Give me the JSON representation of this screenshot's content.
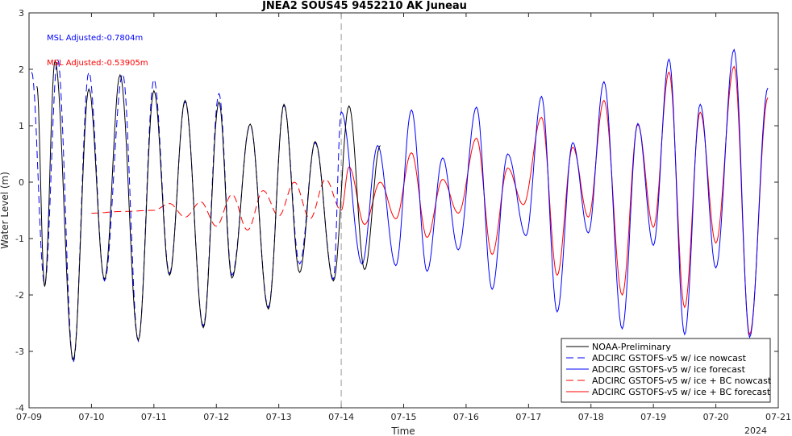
{
  "chart_data": {
    "type": "line",
    "title": "JNEA2 SOUS45 9452210 AK Juneau",
    "xlabel": "Time",
    "ylabel": "Water Level (m)",
    "year_label": "2024",
    "xlim": [
      "2024-07-09",
      "2024-07-21"
    ],
    "ylim": [
      -4,
      3
    ],
    "yticks": [
      -4,
      -3,
      -2,
      -1,
      0,
      1,
      2,
      3
    ],
    "xticks": [
      "07-09",
      "07-10",
      "07-11",
      "07-12",
      "07-13",
      "07-14",
      "07-15",
      "07-16",
      "07-17",
      "07-18",
      "07-19",
      "07-20",
      "07-21"
    ],
    "nowcast_forecast_divider": "07-14",
    "annotations": [
      {
        "text": "MSL Adjusted:-0.7804m",
        "color": "#0000ff"
      },
      {
        "text": "MSL Adjusted:-0.53905m",
        "color": "#ff0000"
      }
    ],
    "legend_position": "bottom-right",
    "series": [
      {
        "name": "NOAA-Preliminary",
        "color": "#000000",
        "style": "solid",
        "x_range": [
          "07-09",
          "07-14"
        ]
      },
      {
        "name": "ADCIRC GSTOFS-v5 w/ ice nowcast",
        "color": "#0000ff",
        "style": "dashed",
        "x_range": [
          "07-09",
          "07-14"
        ]
      },
      {
        "name": "ADCIRC GSTOFS-v5 w/ ice forecast",
        "color": "#0000ff",
        "style": "solid",
        "x_range": [
          "07-14",
          "07-21"
        ]
      },
      {
        "name": "ADCIRC GSTOFS-v5 w/ ice + BC nowcast",
        "color": "#ff0000",
        "style": "dashed",
        "x_range": [
          "07-10",
          "07-14"
        ]
      },
      {
        "name": "ADCIRC GSTOFS-v5 w/ ice + BC forecast",
        "color": "#ff0000",
        "style": "solid",
        "x_range": [
          "07-14",
          "07-21"
        ]
      }
    ],
    "extrema": {
      "NOAA-Preliminary": [
        [
          "07-09 03:00",
          1.7
        ],
        [
          "07-09 06:00",
          -1.85
        ],
        [
          "07-09 10:00",
          2.15
        ],
        [
          "07-09 17:00",
          -3.15
        ],
        [
          "07-09 23:00",
          1.65
        ],
        [
          "07-10 05:00",
          -1.72
        ],
        [
          "07-10 11:00",
          1.9
        ],
        [
          "07-10 18:00",
          -2.8
        ],
        [
          "07-11 00:00",
          1.62
        ],
        [
          "07-11 06:00",
          -1.65
        ],
        [
          "07-11 12:00",
          1.45
        ],
        [
          "07-11 19:00",
          -2.58
        ],
        [
          "07-12 01:00",
          1.42
        ],
        [
          "07-12 06:00",
          -1.7
        ],
        [
          "07-12 13:00",
          1.03
        ],
        [
          "07-12 20:00",
          -2.25
        ],
        [
          "07-13 02:00",
          1.38
        ],
        [
          "07-13 08:00",
          -1.6
        ],
        [
          "07-13 14:00",
          0.72
        ],
        [
          "07-13 21:00",
          -1.75
        ],
        [
          "07-14 03:00",
          1.35
        ],
        [
          "07-14 09:00",
          -1.55
        ],
        [
          "07-14 15:00",
          0.65
        ]
      ],
      "ADCIRC GSTOFS-v5 w/ ice nowcast": [
        [
          "07-09 01:00",
          1.95
        ],
        [
          "07-09 06:00",
          -1.82
        ],
        [
          "07-09 11:00",
          2.18
        ],
        [
          "07-09 17:00",
          -3.2
        ],
        [
          "07-09 23:00",
          1.95
        ],
        [
          "07-10 05:00",
          -1.75
        ],
        [
          "07-10 12:00",
          1.92
        ],
        [
          "07-10 18:00",
          -2.82
        ],
        [
          "07-11 00:00",
          1.82
        ],
        [
          "07-11 06:00",
          -1.62
        ],
        [
          "07-11 12:00",
          1.43
        ],
        [
          "07-11 19:00",
          -2.55
        ],
        [
          "07-12 01:00",
          1.57
        ],
        [
          "07-12 06:00",
          -1.65
        ],
        [
          "07-12 13:00",
          1.02
        ],
        [
          "07-12 20:00",
          -2.22
        ],
        [
          "07-13 02:00",
          1.36
        ],
        [
          "07-13 08:00",
          -1.45
        ],
        [
          "07-13 14:00",
          0.7
        ],
        [
          "07-13 21:00",
          -1.72
        ],
        [
          "07-14 00:00",
          1.25
        ]
      ],
      "ADCIRC GSTOFS-v5 w/ ice forecast": [
        [
          "07-14 00:00",
          1.25
        ],
        [
          "07-14 08:00",
          -1.45
        ],
        [
          "07-14 14:00",
          0.65
        ],
        [
          "07-14 21:00",
          -1.48
        ],
        [
          "07-15 03:00",
          1.28
        ],
        [
          "07-15 09:00",
          -1.58
        ],
        [
          "07-15 15:00",
          0.43
        ],
        [
          "07-15 21:00",
          -1.2
        ],
        [
          "07-16 04:00",
          1.33
        ],
        [
          "07-16 10:00",
          -1.9
        ],
        [
          "07-16 16:00",
          0.5
        ],
        [
          "07-16 23:00",
          -0.95
        ],
        [
          "07-17 05:00",
          1.52
        ],
        [
          "07-17 11:00",
          -2.3
        ],
        [
          "07-17 17:00",
          0.7
        ],
        [
          "07-17 23:00",
          -0.9
        ],
        [
          "07-18 05:00",
          1.78
        ],
        [
          "07-18 12:00",
          -2.6
        ],
        [
          "07-18 18:00",
          1.04
        ],
        [
          "07-19 00:00",
          -1.12
        ],
        [
          "07-19 06:00",
          2.18
        ],
        [
          "07-19 12:00",
          -2.7
        ],
        [
          "07-19 18:00",
          1.38
        ],
        [
          "07-20 00:00",
          -1.52
        ],
        [
          "07-20 07:00",
          2.35
        ],
        [
          "07-20 13:00",
          -2.75
        ],
        [
          "07-20 20:00",
          1.67
        ]
      ],
      "ADCIRC GSTOFS-v5 w/ ice + BC nowcast": [
        [
          "07-10 00:00",
          -0.55
        ],
        [
          "07-10 12:00",
          -0.52
        ],
        [
          "07-11 00:00",
          -0.5
        ],
        [
          "07-11 06:00",
          -0.38
        ],
        [
          "07-11 12:00",
          -0.62
        ],
        [
          "07-11 18:00",
          -0.35
        ],
        [
          "07-12 00:00",
          -0.78
        ],
        [
          "07-12 06:00",
          -0.22
        ],
        [
          "07-12 12:00",
          -0.85
        ],
        [
          "07-12 18:00",
          -0.15
        ],
        [
          "07-13 00:00",
          -0.6
        ],
        [
          "07-13 06:00",
          0.0
        ],
        [
          "07-13 12:00",
          -0.65
        ],
        [
          "07-13 18:00",
          0.05
        ],
        [
          "07-14 00:00",
          -0.5
        ]
      ],
      "ADCIRC GSTOFS-v5 w/ ice + BC forecast": [
        [
          "07-14 00:00",
          -0.5
        ],
        [
          "07-14 03:00",
          0.27
        ],
        [
          "07-14 09:00",
          -0.75
        ],
        [
          "07-14 15:00",
          0.0
        ],
        [
          "07-14 21:00",
          -0.65
        ],
        [
          "07-15 03:00",
          0.52
        ],
        [
          "07-15 09:00",
          -0.98
        ],
        [
          "07-15 15:00",
          0.05
        ],
        [
          "07-15 21:00",
          -0.55
        ],
        [
          "07-16 04:00",
          0.78
        ],
        [
          "07-16 10:00",
          -1.28
        ],
        [
          "07-16 16:00",
          0.25
        ],
        [
          "07-16 22:00",
          -0.4
        ],
        [
          "07-17 05:00",
          1.15
        ],
        [
          "07-17 11:00",
          -1.65
        ],
        [
          "07-17 17:00",
          0.62
        ],
        [
          "07-17 23:00",
          -0.62
        ],
        [
          "07-18 05:00",
          1.45
        ],
        [
          "07-18 12:00",
          -2.0
        ],
        [
          "07-18 18:00",
          1.02
        ],
        [
          "07-19 00:00",
          -0.8
        ],
        [
          "07-19 06:00",
          1.95
        ],
        [
          "07-19 12:00",
          -2.22
        ],
        [
          "07-19 18:00",
          1.24
        ],
        [
          "07-20 00:00",
          -1.08
        ],
        [
          "07-20 07:00",
          2.05
        ],
        [
          "07-20 13:00",
          -2.7
        ],
        [
          "07-20 20:00",
          1.5
        ]
      ]
    }
  }
}
